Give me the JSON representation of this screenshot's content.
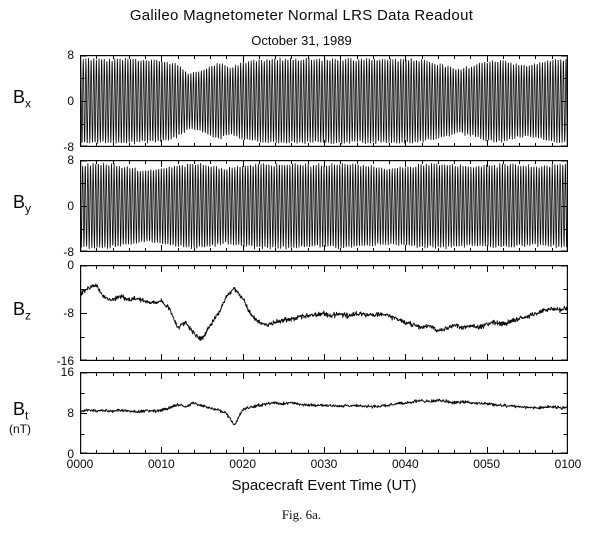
{
  "caption": "Fig. 6a.",
  "style": {
    "ink": "#0a0a0a",
    "background": "#ffffff"
  },
  "chart_data": {
    "type": "line",
    "title": "Galileo Magnetometer Normal LRS Data Readout",
    "subtitle": "October 31, 1989",
    "xlabel": "Spacecraft Event Time (UT)",
    "x_range_minutes": [
      0,
      60
    ],
    "x_minor_step_minutes": 2,
    "x_major_ticks": [
      {
        "t": 0,
        "label": "0000"
      },
      {
        "t": 10,
        "label": "0010"
      },
      {
        "t": 20,
        "label": "0020"
      },
      {
        "t": 30,
        "label": "0030"
      },
      {
        "t": 40,
        "label": "0040"
      },
      {
        "t": 50,
        "label": "0050"
      },
      {
        "t": 60,
        "label": "0100"
      }
    ],
    "grid": false,
    "legend": "none",
    "panels": [
      {
        "id": "bx",
        "label_base": "B",
        "label_sub": "x",
        "unit": "",
        "y_range": [
          -8,
          8
        ],
        "y_minor_step": 4,
        "y_major_ticks": [
          {
            "v": 8,
            "label": "8"
          },
          {
            "v": 0,
            "label": "0"
          },
          {
            "v": -8,
            "label": "-8"
          }
        ],
        "signal": {
          "kind": "spin_modulated_sine",
          "cycles_per_minute": 3.1,
          "phase": 0,
          "noise": 0.3,
          "seed": 7,
          "envelope_t": [
            0,
            2,
            4,
            6,
            8,
            10,
            12,
            13.5,
            15,
            17,
            18.5,
            20,
            22,
            24,
            26,
            28,
            30,
            32,
            34,
            36,
            38,
            40,
            42,
            43.5,
            45,
            46.5,
            48,
            50,
            52,
            53.5,
            55,
            56.5,
            58,
            60
          ],
          "envelope_a": [
            7.1,
            7.25,
            7.15,
            7.25,
            7.1,
            7.0,
            6.2,
            4.7,
            5.3,
            6.6,
            5.7,
            6.5,
            7.0,
            7.2,
            7.25,
            7.15,
            7.2,
            7.25,
            7.1,
            7.25,
            7.15,
            7.2,
            7.0,
            6.5,
            6.1,
            5.5,
            6.0,
            6.8,
            7.0,
            6.4,
            6.1,
            6.5,
            7.0,
            7.15
          ]
        }
      },
      {
        "id": "by",
        "label_base": "B",
        "label_sub": "y",
        "unit": "",
        "y_range": [
          -8,
          8
        ],
        "y_minor_step": 4,
        "y_major_ticks": [
          {
            "v": 8,
            "label": "8"
          },
          {
            "v": 0,
            "label": "0"
          },
          {
            "v": -8,
            "label": "-8"
          }
        ],
        "signal": {
          "kind": "spin_modulated_sine",
          "cycles_per_minute": 3.1,
          "phase": 1.5708,
          "noise": 0.3,
          "seed": 13,
          "envelope_t": [
            0,
            2,
            4,
            6,
            8,
            10,
            12,
            14,
            16,
            18,
            20,
            22,
            24,
            26,
            28,
            30,
            32,
            34,
            36,
            38,
            40,
            42,
            44,
            46,
            48,
            50,
            52,
            54,
            56,
            58,
            60
          ],
          "envelope_a": [
            7.0,
            7.2,
            7.1,
            6.6,
            6.1,
            6.5,
            7.0,
            7.25,
            7.0,
            6.4,
            6.9,
            7.2,
            7.1,
            7.2,
            7.1,
            7.0,
            7.2,
            7.1,
            6.8,
            6.5,
            6.8,
            7.1,
            7.2,
            7.0,
            6.8,
            7.0,
            7.15,
            7.0,
            6.8,
            7.0,
            7.1
          ]
        }
      },
      {
        "id": "bz",
        "label_base": "B",
        "label_sub": "z",
        "unit": "",
        "y_range": [
          -16,
          0
        ],
        "y_minor_step": 4,
        "y_major_ticks": [
          {
            "v": 0,
            "label": "0"
          },
          {
            "v": -8,
            "label": "-8"
          },
          {
            "v": -16,
            "label": "-16"
          }
        ],
        "signal": {
          "kind": "timeseries",
          "t_step": 1,
          "noise": 0.4,
          "seed": 23,
          "values": [
            -4.8,
            -3.9,
            -3.4,
            -5.4,
            -5.8,
            -5.2,
            -5.8,
            -5.5,
            -6.0,
            -6.3,
            -6.0,
            -7.2,
            -10.4,
            -9.6,
            -11.4,
            -12.4,
            -10.0,
            -8.2,
            -5.2,
            -3.9,
            -5.6,
            -8.2,
            -9.6,
            -10.0,
            -9.4,
            -9.2,
            -9.0,
            -8.6,
            -8.4,
            -8.2,
            -8.1,
            -8.4,
            -8.2,
            -8.5,
            -8.1,
            -8.3,
            -8.5,
            -8.1,
            -8.5,
            -9.0,
            -9.6,
            -10.0,
            -10.4,
            -10.1,
            -11.0,
            -10.6,
            -10.1,
            -10.5,
            -10.1,
            -10.4,
            -10.0,
            -9.6,
            -9.9,
            -9.4,
            -9.0,
            -8.6,
            -8.1,
            -7.6,
            -7.2,
            -7.5,
            -7.2
          ]
        }
      },
      {
        "id": "bt",
        "label_base": "B",
        "label_sub": "t",
        "unit": "(nT)",
        "y_range": [
          0,
          16
        ],
        "y_minor_step": 4,
        "y_major_ticks": [
          {
            "v": 16,
            "label": "16"
          },
          {
            "v": 8,
            "label": "8"
          },
          {
            "v": 0,
            "label": "0"
          }
        ],
        "signal": {
          "kind": "timeseries",
          "t_step": 1,
          "noise": 0.3,
          "seed": 41,
          "values": [
            8.3,
            8.6,
            8.4,
            8.5,
            8.3,
            8.5,
            8.4,
            8.2,
            8.4,
            8.3,
            8.5,
            9.0,
            9.6,
            9.2,
            10.0,
            9.4,
            9.0,
            8.6,
            7.9,
            5.6,
            8.6,
            9.2,
            9.5,
            9.8,
            10.0,
            9.8,
            10.0,
            9.7,
            9.5,
            9.6,
            9.5,
            9.4,
            9.3,
            9.4,
            9.5,
            9.3,
            9.2,
            9.4,
            9.5,
            9.8,
            10.0,
            10.2,
            10.4,
            10.2,
            10.5,
            10.3,
            10.0,
            10.2,
            10.0,
            9.9,
            9.8,
            9.6,
            9.5,
            9.4,
            9.2,
            9.1,
            9.0,
            9.1,
            9.2,
            9.0,
            9.0
          ]
        }
      }
    ]
  }
}
